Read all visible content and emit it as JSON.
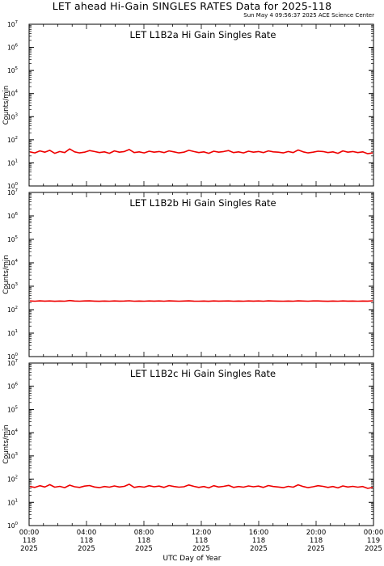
{
  "page": {
    "title": "LET ahead Hi-Gain SINGLES RATES Data for 2025-118",
    "timestamp": "Sun May  4 09:56:37 2025 ACE Science Center",
    "x_axis_title": "UTC Day of Year"
  },
  "colors": {
    "series": "#ee0000",
    "panel_title": "#1a1ad6",
    "axes": "#000000"
  },
  "chart_data": [
    {
      "type": "line",
      "title": "LET L1B2a Hi Gain Singles Rate",
      "ylabel": "Counts/min",
      "yscale": "log",
      "ylim": [
        1,
        10000000
      ],
      "ytick_values": [
        1,
        10,
        100,
        1000,
        10000,
        100000,
        1000000,
        10000000
      ],
      "series": [
        {
          "values": [
            30,
            27,
            33,
            29,
            35,
            26,
            31,
            28,
            40,
            30,
            27,
            29,
            34,
            31,
            28,
            30,
            26,
            33,
            29,
            31,
            38,
            28,
            30,
            27,
            32,
            29,
            31,
            28,
            33,
            30,
            27,
            29,
            35,
            31,
            28,
            30,
            26,
            32,
            29,
            31,
            34,
            28,
            30,
            27,
            32,
            29,
            31,
            28,
            33,
            30,
            29,
            27,
            31,
            28,
            36,
            30,
            27,
            29,
            32,
            31,
            28,
            30,
            26,
            33,
            29,
            31,
            28,
            30,
            25,
            27
          ]
        }
      ]
    },
    {
      "type": "line",
      "title": "LET L1B2b Hi Gain Singles Rate",
      "ylabel": "Counts/min",
      "yscale": "log",
      "ylim": [
        1,
        10000000
      ],
      "ytick_values": [
        1,
        10,
        100,
        1000,
        10000,
        100000,
        1000000,
        10000000
      ],
      "series": [
        {
          "values": [
            235,
            230,
            238,
            232,
            236,
            229,
            234,
            231,
            245,
            233,
            230,
            235,
            237,
            232,
            229,
            234,
            231,
            236,
            232,
            233,
            240,
            230,
            234,
            231,
            236,
            232,
            235,
            230,
            237,
            233,
            231,
            234,
            238,
            232,
            230,
            234,
            229,
            236,
            232,
            233,
            235,
            230,
            234,
            231,
            236,
            232,
            235,
            230,
            237,
            233,
            232,
            230,
            234,
            231,
            238,
            233,
            230,
            235,
            236,
            232,
            229,
            234,
            231,
            236,
            232,
            233,
            230,
            234,
            232,
            240
          ]
        }
      ]
    },
    {
      "type": "line",
      "title": "LET L1B2c Hi Gain Singles Rate",
      "ylabel": "Counts/min",
      "yscale": "log",
      "ylim": [
        1,
        10000000
      ],
      "ytick_values": [
        1,
        10,
        100,
        1000,
        10000,
        100000,
        1000000,
        10000000
      ],
      "series": [
        {
          "values": [
            48,
            44,
            52,
            46,
            58,
            45,
            49,
            43,
            55,
            47,
            44,
            50,
            53,
            46,
            43,
            48,
            45,
            51,
            46,
            49,
            60,
            44,
            48,
            45,
            52,
            47,
            50,
            44,
            53,
            48,
            45,
            47,
            56,
            49,
            44,
            48,
            42,
            52,
            46,
            49,
            54,
            44,
            48,
            45,
            51,
            47,
            50,
            44,
            53,
            48,
            46,
            43,
            49,
            45,
            57,
            48,
            43,
            47,
            52,
            49,
            44,
            48,
            42,
            51,
            46,
            49,
            45,
            48,
            40,
            44
          ]
        }
      ]
    }
  ],
  "x_axis": {
    "xlim": [
      "118 00:00",
      "119 00:00"
    ],
    "ticks": [
      {
        "time": "00:00",
        "day": "118",
        "year": "2025"
      },
      {
        "time": "04:00",
        "day": "118",
        "year": "2025"
      },
      {
        "time": "08:00",
        "day": "118",
        "year": "2025"
      },
      {
        "time": "12:00",
        "day": "118",
        "year": "2025"
      },
      {
        "time": "16:00",
        "day": "118",
        "year": "2025"
      },
      {
        "time": "20:00",
        "day": "118",
        "year": "2025"
      },
      {
        "time": "00:00",
        "day": "119",
        "year": "2025"
      }
    ]
  }
}
